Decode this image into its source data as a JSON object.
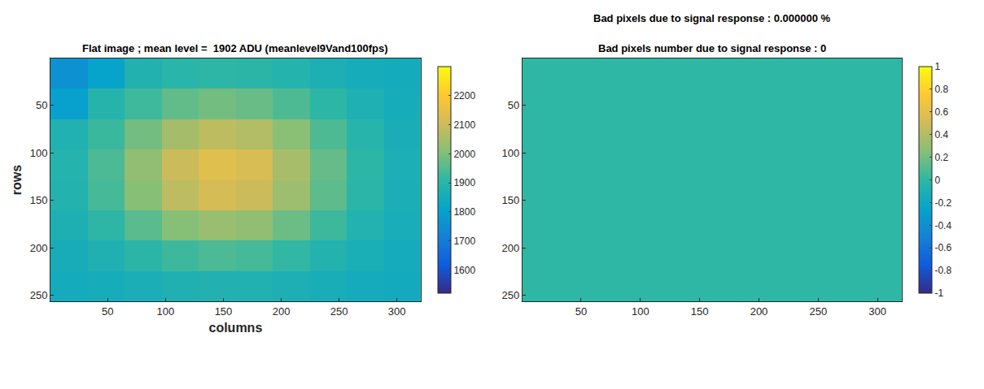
{
  "chart_data": [
    {
      "type": "heatmap",
      "title": "Flat image ; mean level =  1902 ADU (meanlevel9Vand100fps)",
      "x_label": "columns",
      "y_label": "rows",
      "x": [
        16.5,
        48.5,
        80.5,
        112.5,
        144.5,
        176.5,
        208.5,
        240.5,
        272.5,
        304.5
      ],
      "y": [
        16.5,
        48.5,
        80.5,
        112.5,
        144.5,
        176.5,
        208.5,
        240.5
      ],
      "z": [
        [
          1760,
          1810,
          1881,
          1898,
          1907,
          1902,
          1888,
          1869,
          1855,
          1846
        ],
        [
          1800,
          1891,
          1929,
          1966,
          1986,
          1976,
          1944,
          1904,
          1872,
          1853
        ],
        [
          1878,
          1923,
          1986,
          2047,
          2079,
          2064,
          2011,
          1945,
          1893,
          1861
        ],
        [
          1888,
          1943,
          2021,
          2097,
          2136,
          2117,
          2051,
          1970,
          1905,
          1867
        ],
        [
          1884,
          1936,
          2008,
          2079,
          2116,
          2098,
          2037,
          1961,
          1901,
          1865
        ],
        [
          1871,
          1907,
          1958,
          2008,
          2033,
          2021,
          1978,
          1925,
          1883,
          1857
        ],
        [
          1856,
          1875,
          1902,
          1928,
          1942,
          1935,
          1913,
          1885,
          1862,
          1849
        ],
        [
          1847,
          1854,
          1865,
          1875,
          1880,
          1878,
          1869,
          1858,
          1849,
          1844
        ]
      ],
      "xlim": [
        0.5,
        320.5
      ],
      "ylim": [
        256.5,
        0.5
      ],
      "xticks": [
        50,
        100,
        150,
        200,
        250,
        300
      ],
      "yticks": [
        50,
        100,
        150,
        200,
        250
      ],
      "colorbar": {
        "range": [
          1520,
          2300
        ],
        "ticks": [
          1600,
          1700,
          1800,
          1900,
          2000,
          2100,
          2200
        ]
      }
    },
    {
      "type": "heatmap",
      "subtitle": "Bad pixels due to signal response : 0.000000 %",
      "title": "Bad pixels number due to signal response : 0",
      "x": [
        16.5,
        48.5,
        80.5,
        112.5,
        144.5,
        176.5,
        208.5,
        240.5,
        272.5,
        304.5
      ],
      "y": [
        16.5,
        48.5,
        80.5,
        112.5,
        144.5,
        176.5,
        208.5,
        240.5
      ],
      "z": [
        [
          0,
          0,
          0,
          0,
          0,
          0,
          0,
          0,
          0,
          0
        ],
        [
          0,
          0,
          0,
          0,
          0,
          0,
          0,
          0,
          0,
          0
        ],
        [
          0,
          0,
          0,
          0,
          0,
          0,
          0,
          0,
          0,
          0
        ],
        [
          0,
          0,
          0,
          0,
          0,
          0,
          0,
          0,
          0,
          0
        ],
        [
          0,
          0,
          0,
          0,
          0,
          0,
          0,
          0,
          0,
          0
        ],
        [
          0,
          0,
          0,
          0,
          0,
          0,
          0,
          0,
          0,
          0
        ],
        [
          0,
          0,
          0,
          0,
          0,
          0,
          0,
          0,
          0,
          0
        ],
        [
          0,
          0,
          0,
          0,
          0,
          0,
          0,
          0,
          0,
          0
        ]
      ],
      "xlim": [
        0.5,
        320.5
      ],
      "ylim": [
        256.5,
        0.5
      ],
      "xticks": [
        50,
        100,
        150,
        200,
        250,
        300
      ],
      "yticks": [
        50,
        100,
        150,
        200,
        250
      ],
      "colorbar": {
        "range": [
          -1,
          1
        ],
        "ticks": [
          -1,
          -0.8,
          -0.6,
          -0.4,
          -0.2,
          0,
          0.2,
          0.4,
          0.6,
          0.8,
          1
        ]
      }
    }
  ]
}
